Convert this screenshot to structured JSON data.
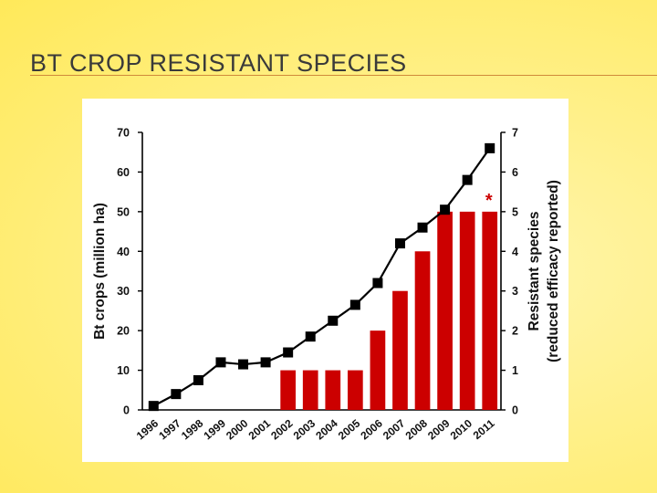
{
  "slide": {
    "title": "BT CROP RESISTANT SPECIES"
  },
  "colors": {
    "bar": "#cc0000",
    "line": "#000000",
    "asterisk": "#cc0000"
  },
  "chart_data": {
    "type": "bar+line",
    "categories": [
      "1996",
      "1997",
      "1998",
      "1999",
      "2000",
      "2001",
      "2002",
      "2003",
      "2004",
      "2005",
      "2006",
      "2007",
      "2008",
      "2009",
      "2010",
      "2011"
    ],
    "series": [
      {
        "name": "Bt crops (million ha)",
        "type": "line",
        "axis": "left",
        "marker": "square",
        "values": [
          1,
          4,
          7.5,
          12,
          11.5,
          12,
          14.5,
          18.5,
          22.5,
          26.5,
          32,
          42,
          46,
          50.5,
          58,
          66
        ]
      },
      {
        "name": "Resistant species (reduced efficacy reported)",
        "type": "bar",
        "axis": "right",
        "values": [
          0,
          0,
          0,
          0,
          0,
          0,
          1,
          1,
          1,
          1,
          2,
          3,
          4,
          5,
          5,
          5
        ]
      }
    ],
    "left_axis": {
      "label": "Bt crops (million ha)",
      "ylim": [
        0,
        70
      ],
      "ticks": [
        "0",
        "10",
        "20",
        "30",
        "40",
        "50",
        "60",
        "70"
      ]
    },
    "right_axis": {
      "label_line1": "Resistant species",
      "label_line2": "(reduced efficacy reported)",
      "ylim": [
        0,
        7
      ],
      "ticks": [
        "0",
        "1",
        "2",
        "3",
        "4",
        "5",
        "6",
        "7"
      ]
    },
    "annotations": [
      {
        "text": "*",
        "category": "2011",
        "axis": "right",
        "value": 5
      }
    ]
  }
}
